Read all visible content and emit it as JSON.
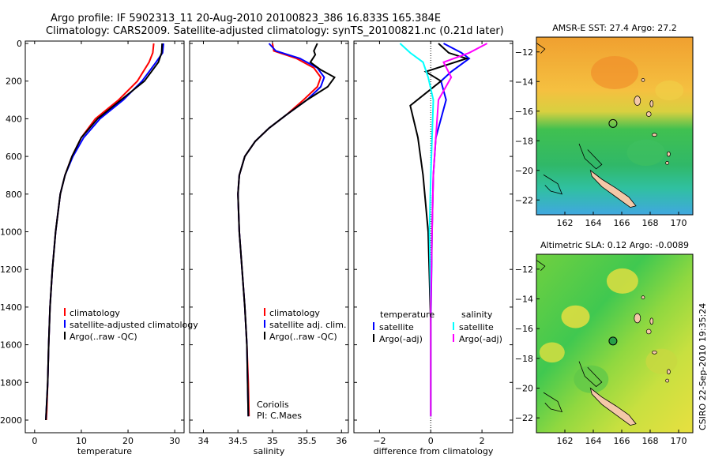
{
  "header": {
    "line1": "Argo profile: IF 5902313_11 20-Aug-2010 20100823_386 16.833S 165.384E",
    "line2": "Climatology: CARS2009. Satellite-adjusted climatology: synTS_20100821.nc (0.21d later)"
  },
  "side_label": "CSIRO 22-Sep-2010 19:35:24",
  "colors": {
    "red": "#ff0000",
    "blue": "#0000ff",
    "black": "#000000",
    "cyan": "#00ffff",
    "magenta": "#ff00ff",
    "land": "#f4c8a8"
  },
  "chart_data": [
    {
      "type": "line",
      "xlabel": "temperature",
      "xticks": [
        0,
        10,
        20,
        30
      ],
      "xlim": [
        -2,
        32
      ],
      "ylim": [
        0,
        2050
      ],
      "yticks": [
        0,
        200,
        400,
        600,
        800,
        1000,
        1200,
        1400,
        1600,
        1800,
        2000
      ],
      "yreversed": true,
      "legend": [
        "climatology",
        "satellite-adjusted climatology",
        "Argo(..raw -QC)"
      ],
      "series": [
        {
          "name": "climatology",
          "color": "red",
          "x": [
            25.5,
            25.3,
            24.5,
            22,
            18,
            13,
            10,
            8,
            6.5,
            5.5,
            4.5,
            3.8,
            3.3,
            3,
            2.8,
            2.6,
            2.5
          ],
          "y": [
            0,
            50,
            100,
            200,
            300,
            400,
            500,
            600,
            700,
            800,
            1000,
            1200,
            1400,
            1600,
            1800,
            1950,
            2000
          ]
        },
        {
          "name": "satellite-adjusted climatology",
          "color": "blue",
          "x": [
            27.6,
            27.4,
            26,
            23,
            19,
            14,
            10.5,
            8.2,
            6.5,
            5.5,
            4.5,
            3.8,
            3.3,
            3,
            2.8,
            2.5,
            2.4
          ],
          "y": [
            0,
            50,
            100,
            200,
            300,
            400,
            500,
            600,
            700,
            800,
            1000,
            1200,
            1400,
            1600,
            1800,
            1950,
            2000
          ]
        },
        {
          "name": "Argo(..raw -QC)",
          "color": "black",
          "x": [
            27.3,
            27.2,
            26.5,
            23.5,
            18.5,
            13.5,
            10,
            8,
            6.5,
            5.5,
            4.5,
            3.8,
            3.3,
            3,
            2.8,
            2.5,
            2.4
          ],
          "y": [
            0,
            50,
            100,
            200,
            300,
            400,
            500,
            600,
            700,
            800,
            1000,
            1200,
            1400,
            1600,
            1800,
            1950,
            2000
          ]
        }
      ]
    },
    {
      "type": "line",
      "xlabel": "salinity",
      "xticks": [
        34,
        34.5,
        35,
        35.5,
        36
      ],
      "xlim": [
        33.8,
        36.1
      ],
      "ylim": [
        0,
        2050
      ],
      "yreversed": true,
      "legend": [
        "climatology",
        "satellite adj. clim.",
        "Argo(..raw -QC)"
      ],
      "annotation": [
        "Coriolis",
        "PI: C.Maes"
      ],
      "series": [
        {
          "name": "climatology",
          "color": "red",
          "x": [
            35.0,
            35.02,
            35.35,
            35.6,
            35.7,
            35.65,
            35.45,
            35.2,
            34.95,
            34.75,
            34.6,
            34.52,
            34.5,
            34.52,
            34.56,
            34.6,
            34.63,
            34.65,
            34.66
          ],
          "y": [
            0,
            40,
            80,
            130,
            180,
            230,
            300,
            380,
            450,
            520,
            600,
            700,
            800,
            1000,
            1200,
            1400,
            1600,
            1800,
            1980
          ]
        },
        {
          "name": "satellite adj. clim.",
          "color": "blue",
          "x": [
            34.95,
            35.05,
            35.4,
            35.65,
            35.75,
            35.7,
            35.5,
            35.2,
            34.95,
            34.75,
            34.6,
            34.52,
            34.5,
            34.52,
            34.56,
            34.6,
            34.63,
            34.64,
            34.65
          ],
          "y": [
            0,
            40,
            80,
            130,
            180,
            230,
            300,
            380,
            450,
            520,
            600,
            700,
            800,
            1000,
            1200,
            1400,
            1600,
            1800,
            1980
          ]
        },
        {
          "name": "Argo(..raw -QC)",
          "color": "black",
          "x": [
            35.65,
            35.6,
            35.62,
            35.55,
            35.7,
            35.9,
            35.8,
            35.5,
            35.2,
            34.95,
            34.75,
            34.6,
            34.52,
            34.5,
            34.52,
            34.56,
            34.6,
            34.63,
            34.65
          ],
          "y": [
            0,
            40,
            60,
            100,
            140,
            180,
            230,
            300,
            380,
            450,
            520,
            600,
            700,
            800,
            1000,
            1200,
            1400,
            1600,
            1980
          ]
        }
      ]
    },
    {
      "type": "line",
      "xlabel": "difference from climatology",
      "xticks": [
        -2,
        0,
        2
      ],
      "xlim": [
        -3,
        3.2
      ],
      "ylim": [
        0,
        2050
      ],
      "yreversed": true,
      "legend_left_title": "temperature",
      "legend_right_title": "salinity",
      "legend_left": [
        "satellite",
        "Argo(-adj)"
      ],
      "legend_right": [
        "satellite",
        "Argo(-adj)"
      ],
      "series": [
        {
          "name": "temperature satellite",
          "color": "blue",
          "x": [
            0.5,
            1.2,
            1.5,
            0.8,
            0.4,
            0.6,
            0.2,
            0.1,
            0.05,
            0,
            0
          ],
          "y": [
            0,
            50,
            80,
            150,
            200,
            300,
            500,
            700,
            1000,
            1500,
            1980
          ]
        },
        {
          "name": "temperature Argo(-adj)",
          "color": "black",
          "x": [
            0.3,
            0.7,
            1.4,
            -0.2,
            0.4,
            -0.8,
            -0.5,
            -0.3,
            -0.1,
            0,
            0
          ],
          "y": [
            0,
            50,
            80,
            150,
            200,
            330,
            500,
            700,
            1000,
            1500,
            1980
          ]
        },
        {
          "name": "salinity satellite",
          "color": "cyan",
          "x": [
            -1.2,
            -0.8,
            -0.3,
            -0.1,
            0.1,
            0.05,
            0,
            -0.05,
            0,
            0,
            0
          ],
          "y": [
            0,
            50,
            100,
            180,
            300,
            500,
            700,
            1000,
            1400,
            1800,
            1980
          ]
        },
        {
          "name": "salinity Argo(-adj)",
          "color": "magenta",
          "x": [
            2.2,
            1.5,
            0.5,
            0.8,
            0.3,
            0.2,
            0.1,
            0.05,
            0,
            0,
            0
          ],
          "y": [
            0,
            50,
            100,
            180,
            300,
            500,
            700,
            1000,
            1400,
            1800,
            1980
          ]
        }
      ]
    },
    {
      "type": "heatmap",
      "title": "AMSR-E SST: 27.4 Argo: 27.2",
      "xticks": [
        162,
        164,
        166,
        168,
        170
      ],
      "yticks": [
        -12,
        -14,
        -16,
        -18,
        -20,
        -22
      ],
      "xlim": [
        160,
        171
      ],
      "ylim": [
        -23,
        -11
      ],
      "marker": {
        "lon": 165.384,
        "lat": -16.833
      }
    },
    {
      "type": "heatmap",
      "title": "Altimetric SLA: 0.12 Argo: -0.0089",
      "xticks": [
        162,
        164,
        166,
        168,
        170
      ],
      "yticks": [
        -12,
        -14,
        -16,
        -18,
        -20,
        -22
      ],
      "xlim": [
        160,
        171
      ],
      "ylim": [
        -23,
        -11
      ],
      "marker": {
        "lon": 165.384,
        "lat": -16.833
      }
    }
  ]
}
